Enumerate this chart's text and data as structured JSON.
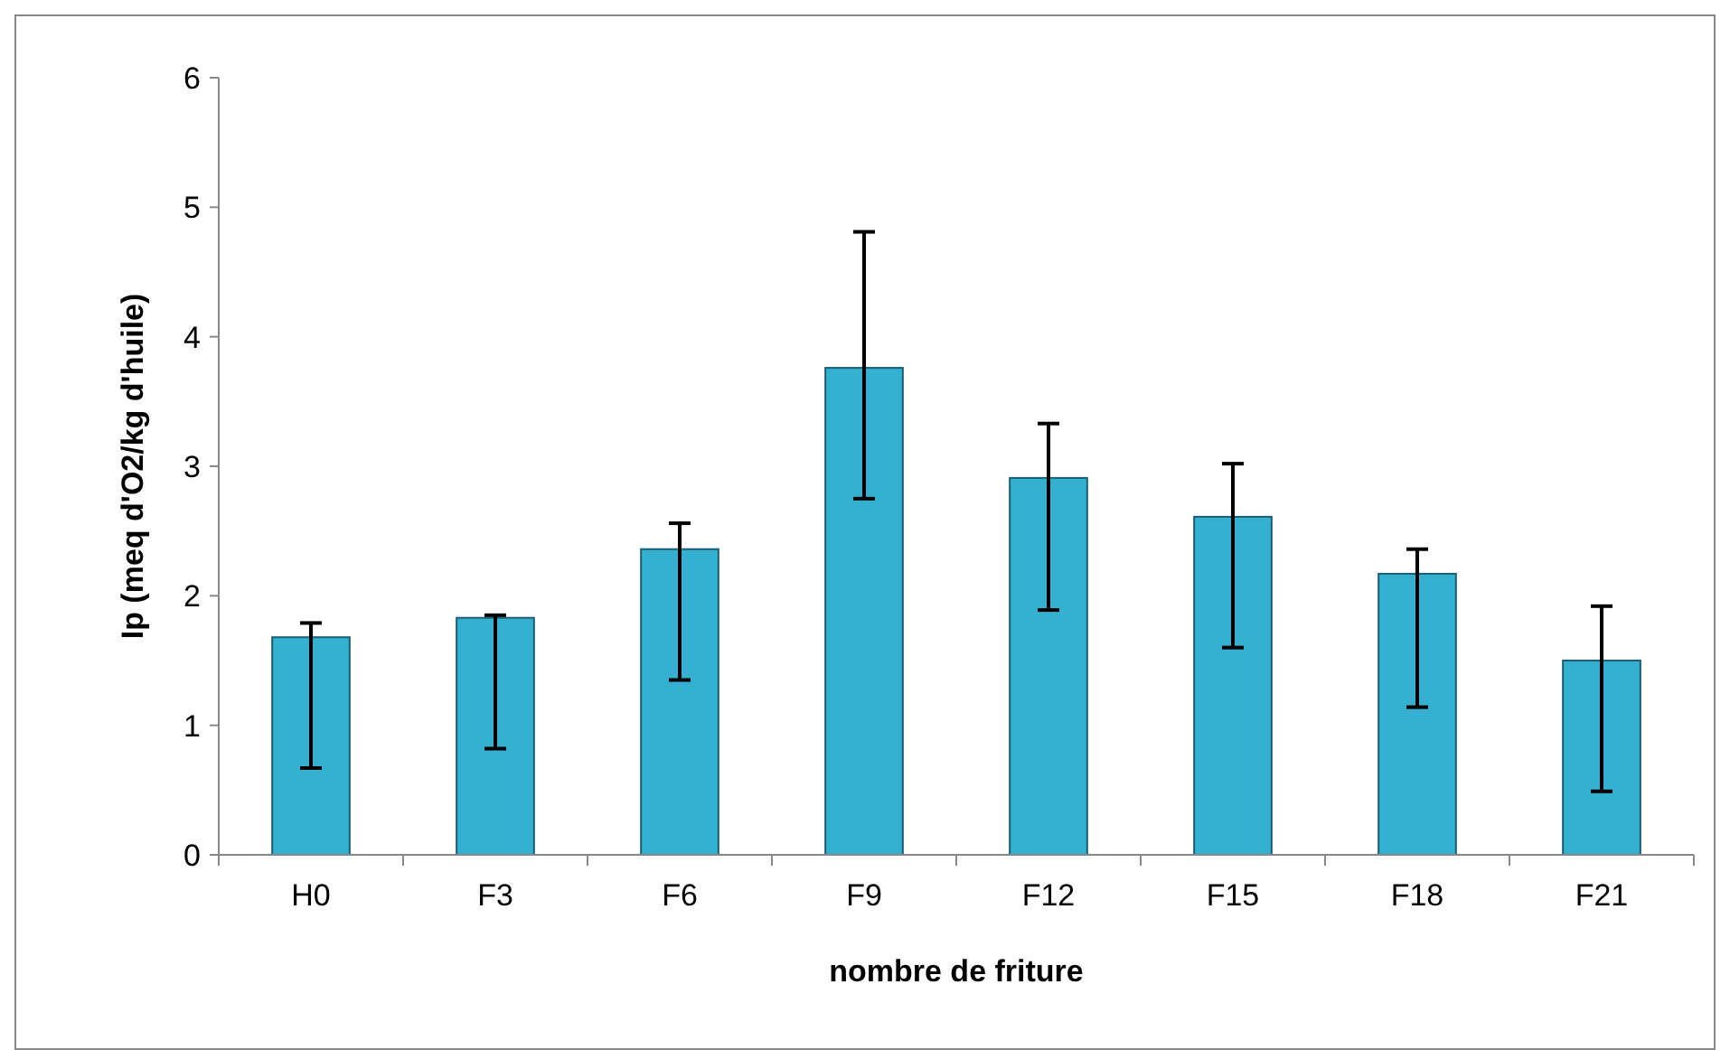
{
  "chart_data": {
    "type": "bar",
    "xlabel": "nombre de friture",
    "ylabel": "Ip (meq d'O2/kg d'huile)",
    "categories": [
      "H0",
      "F3",
      "F6",
      "F9",
      "F12",
      "F15",
      "F18",
      "F21"
    ],
    "values": [
      1.68,
      1.83,
      2.36,
      3.76,
      2.91,
      2.61,
      2.17,
      1.5
    ],
    "errors": [
      [
        0.67,
        1.79
      ],
      [
        0.82,
        1.85
      ],
      [
        1.35,
        2.56
      ],
      [
        2.75,
        4.81
      ],
      [
        1.89,
        3.33
      ],
      [
        1.6,
        3.02
      ],
      [
        1.14,
        2.36
      ],
      [
        0.49,
        1.92
      ]
    ],
    "color": "#35b0d0",
    "ylim": [
      0,
      6
    ],
    "yticks": [
      0,
      1,
      2,
      3,
      4,
      5,
      6
    ]
  }
}
